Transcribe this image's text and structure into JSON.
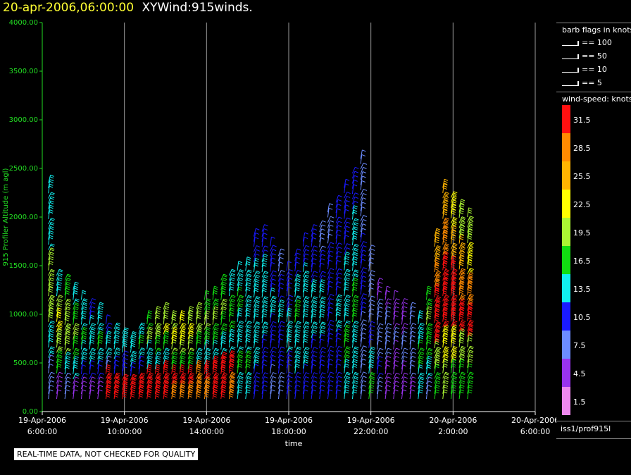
{
  "header": {
    "time": "20-apr-2006,06:00:00",
    "product": "XYWind:915winds."
  },
  "legend": {
    "barb_title": "barb flags in knots",
    "barb_items": [
      "== 100",
      "== 50",
      "== 10",
      "== 5"
    ],
    "colorbar_title": "wind-speed: knots",
    "colorbar": [
      {
        "label": "31.5",
        "color": "#ff1010"
      },
      {
        "label": "28.5",
        "color": "#ff8a00"
      },
      {
        "label": "25.5",
        "color": "#ffb400"
      },
      {
        "label": "22.5",
        "color": "#ffff00"
      },
      {
        "label": "19.5",
        "color": "#aaf533"
      },
      {
        "label": "16.5",
        "color": "#11dd11"
      },
      {
        "label": "13.5",
        "color": "#11eeee"
      },
      {
        "label": "10.5",
        "color": "#1a1aff"
      },
      {
        "label": "7.5",
        "color": "#6c8cff"
      },
      {
        "label": "4.5",
        "color": "#9933ee"
      },
      {
        "label": "1.5",
        "color": "#ee88ee"
      }
    ],
    "source": "iss1/prof915l"
  },
  "disclaimer": "REAL-TIME DATA, NOT CHECKED FOR QUALITY",
  "chart_data": {
    "type": "scatter",
    "title": "20-apr-2006,06:00:00 XYWind:915winds.",
    "ylabel": "915 Profiler Altitude (m agl)",
    "xlabel": "time",
    "ylim": [
      0,
      4000
    ],
    "yticks": [
      "0.00",
      "500.00",
      "1000.00",
      "1500.00",
      "2000.00",
      "2500.00",
      "3000.00",
      "3500.00",
      "4000.00"
    ],
    "xticks": [
      {
        "date": "19-Apr-2006",
        "time": "6:00:00"
      },
      {
        "date": "19-Apr-2006",
        "time": "10:00:00"
      },
      {
        "date": "19-Apr-2006",
        "time": "14:00:00"
      },
      {
        "date": "19-Apr-2006",
        "time": "18:00:00"
      },
      {
        "date": "19-Apr-2006",
        "time": "22:00:00"
      },
      {
        "date": "20-Apr-2006",
        "time": "2:00:00"
      },
      {
        "date": "20-Apr-2006",
        "time": "6:00:00"
      }
    ],
    "xlim": [
      "19-Apr-2006 6:00",
      "20-Apr-2006 6:00"
    ],
    "grid": "vertical",
    "series_note": "wind barbs colored by speed (knots)",
    "columns": [
      {
        "hour": 0.3,
        "top": 2350,
        "speed": [
          12,
          14,
          18,
          20,
          14,
          6
        ]
      },
      {
        "hour": 0.7,
        "top": 1400,
        "speed": [
          14,
          18,
          22,
          20,
          16,
          4
        ]
      },
      {
        "hour": 1.1,
        "top": 1350,
        "speed": [
          16,
          18,
          20,
          18,
          14,
          6
        ]
      },
      {
        "hour": 1.5,
        "top": 1250,
        "speed": [
          14,
          16,
          18,
          16,
          12,
          5
        ]
      },
      {
        "hour": 1.9,
        "top": 1150,
        "speed": [
          12,
          14,
          16,
          14,
          10,
          4
        ]
      },
      {
        "hour": 2.3,
        "top": 1100,
        "speed": [
          10,
          12,
          14,
          12,
          9,
          5
        ]
      },
      {
        "hour": 2.7,
        "top": 1050,
        "speed": [
          12,
          14,
          16,
          13,
          11,
          4
        ]
      },
      {
        "hour": 3.1,
        "top": 900,
        "speed": [
          10,
          12,
          14,
          8,
          32,
          30
        ]
      },
      {
        "hour": 3.5,
        "top": 850,
        "speed": [
          12,
          14,
          12,
          10,
          32,
          31
        ]
      },
      {
        "hour": 3.9,
        "top": 800,
        "speed": [
          14,
          12,
          11,
          9,
          31,
          30
        ]
      },
      {
        "hour": 4.3,
        "top": 750,
        "speed": [
          12,
          13,
          14,
          10,
          32,
          31
        ]
      },
      {
        "hour": 4.7,
        "top": 850,
        "speed": [
          14,
          16,
          12,
          11,
          31,
          32
        ]
      },
      {
        "hour": 5.1,
        "top": 950,
        "speed": [
          16,
          18,
          14,
          12,
          32,
          31
        ]
      },
      {
        "hour": 5.5,
        "top": 1000,
        "speed": [
          18,
          20,
          16,
          14,
          31,
          30
        ]
      },
      {
        "hour": 5.9,
        "top": 1050,
        "speed": [
          19,
          21,
          17,
          14,
          31,
          30
        ]
      },
      {
        "hour": 6.3,
        "top": 950,
        "speed": [
          20,
          22,
          18,
          15,
          30,
          29
        ]
      },
      {
        "hour": 6.7,
        "top": 950,
        "speed": [
          22,
          23,
          20,
          16,
          30,
          28
        ]
      },
      {
        "hour": 7.1,
        "top": 1000,
        "speed": [
          20,
          22,
          19,
          15,
          30,
          29
        ]
      },
      {
        "hour": 7.5,
        "top": 1050,
        "speed": [
          18,
          20,
          17,
          14,
          29,
          28
        ]
      },
      {
        "hour": 7.9,
        "top": 1150,
        "speed": [
          16,
          18,
          16,
          13,
          30,
          29
        ]
      },
      {
        "hour": 8.3,
        "top": 1200,
        "speed": [
          17,
          19,
          17,
          14,
          31,
          30
        ]
      },
      {
        "hour": 8.7,
        "top": 1350,
        "speed": [
          16,
          18,
          16,
          13,
          31,
          30
        ]
      },
      {
        "hour": 9.1,
        "top": 1400,
        "speed": [
          14,
          16,
          15,
          13,
          30,
          29
        ]
      },
      {
        "hour": 9.5,
        "top": 1450,
        "speed": [
          13,
          15,
          14,
          12,
          16,
          14
        ]
      },
      {
        "hour": 9.9,
        "top": 1500,
        "speed": [
          13,
          14,
          14,
          12,
          15,
          13
        ]
      },
      {
        "hour": 10.3,
        "top": 1800,
        "speed": [
          11,
          13,
          14,
          13,
          12,
          10
        ]
      },
      {
        "hour": 10.7,
        "top": 1850,
        "speed": [
          10,
          12,
          13,
          12,
          11,
          9
        ]
      },
      {
        "hour": 11.1,
        "top": 1700,
        "speed": [
          9,
          11,
          12,
          11,
          10,
          8
        ]
      },
      {
        "hour": 11.5,
        "top": 1600,
        "speed": [
          8,
          10,
          12,
          10,
          9,
          7
        ]
      },
      {
        "hour": 11.9,
        "top": 1450,
        "speed": [
          9,
          11,
          14,
          12,
          11,
          10
        ]
      },
      {
        "hour": 12.3,
        "top": 1600,
        "speed": [
          10,
          12,
          15,
          13,
          12,
          11
        ]
      },
      {
        "hour": 12.7,
        "top": 1750,
        "speed": [
          10,
          12,
          14,
          13,
          12,
          11
        ]
      },
      {
        "hour": 13.1,
        "top": 1850,
        "speed": [
          9,
          11,
          13,
          12,
          11,
          10
        ]
      },
      {
        "hour": 13.5,
        "top": 1900,
        "speed": [
          8,
          10,
          12,
          12,
          11,
          9
        ]
      },
      {
        "hour": 13.9,
        "top": 2050,
        "speed": [
          8,
          10,
          11,
          11,
          10,
          9
        ]
      },
      {
        "hour": 14.3,
        "top": 2150,
        "speed": [
          9,
          10,
          11,
          12,
          11,
          10
        ]
      },
      {
        "hour": 14.7,
        "top": 2300,
        "speed": [
          9,
          10,
          12,
          14,
          16,
          14
        ]
      },
      {
        "hour": 15.1,
        "top": 2450,
        "speed": [
          10,
          12,
          14,
          16,
          14,
          12
        ]
      },
      {
        "hour": 15.5,
        "top": 2600,
        "speed": [
          6,
          7,
          9,
          10,
          8,
          6
        ]
      },
      {
        "hour": 15.9,
        "top": 1650,
        "speed": [
          6,
          7,
          8,
          10,
          14,
          16
        ]
      },
      {
        "hour": 16.3,
        "top": 1300,
        "speed": [
          5,
          6,
          7,
          8,
          9,
          8
        ]
      },
      {
        "hour": 16.7,
        "top": 1200,
        "speed": [
          5,
          6,
          6,
          6,
          5,
          4
        ]
      },
      {
        "hour": 17.1,
        "top": 1150,
        "speed": [
          4,
          5,
          6,
          5,
          4,
          3
        ]
      },
      {
        "hour": 17.5,
        "top": 1100,
        "speed": [
          5,
          5,
          6,
          6,
          5,
          4
        ]
      },
      {
        "hour": 17.9,
        "top": 1050,
        "speed": [
          6,
          6,
          7,
          7,
          6,
          5
        ]
      },
      {
        "hour": 18.3,
        "top": 950,
        "speed": [
          12,
          14,
          15,
          16,
          14,
          12
        ]
      },
      {
        "hour": 18.7,
        "top": 1200,
        "speed": [
          16,
          18,
          17,
          15,
          12,
          8
        ]
      },
      {
        "hour": 19.1,
        "top": 1800,
        "speed": [
          26,
          29,
          30,
          31,
          20,
          16
        ]
      },
      {
        "hour": 19.5,
        "top": 2300,
        "speed": [
          24,
          28,
          31,
          32,
          22,
          18
        ]
      },
      {
        "hour": 19.9,
        "top": 2200,
        "speed": [
          22,
          26,
          30,
          31,
          21,
          17
        ]
      },
      {
        "hour": 20.3,
        "top": 2100,
        "speed": [
          20,
          24,
          29,
          30,
          20,
          16
        ]
      },
      {
        "hour": 20.7,
        "top": 2000,
        "speed": [
          20,
          23,
          28,
          30,
          19,
          15
        ]
      }
    ]
  }
}
